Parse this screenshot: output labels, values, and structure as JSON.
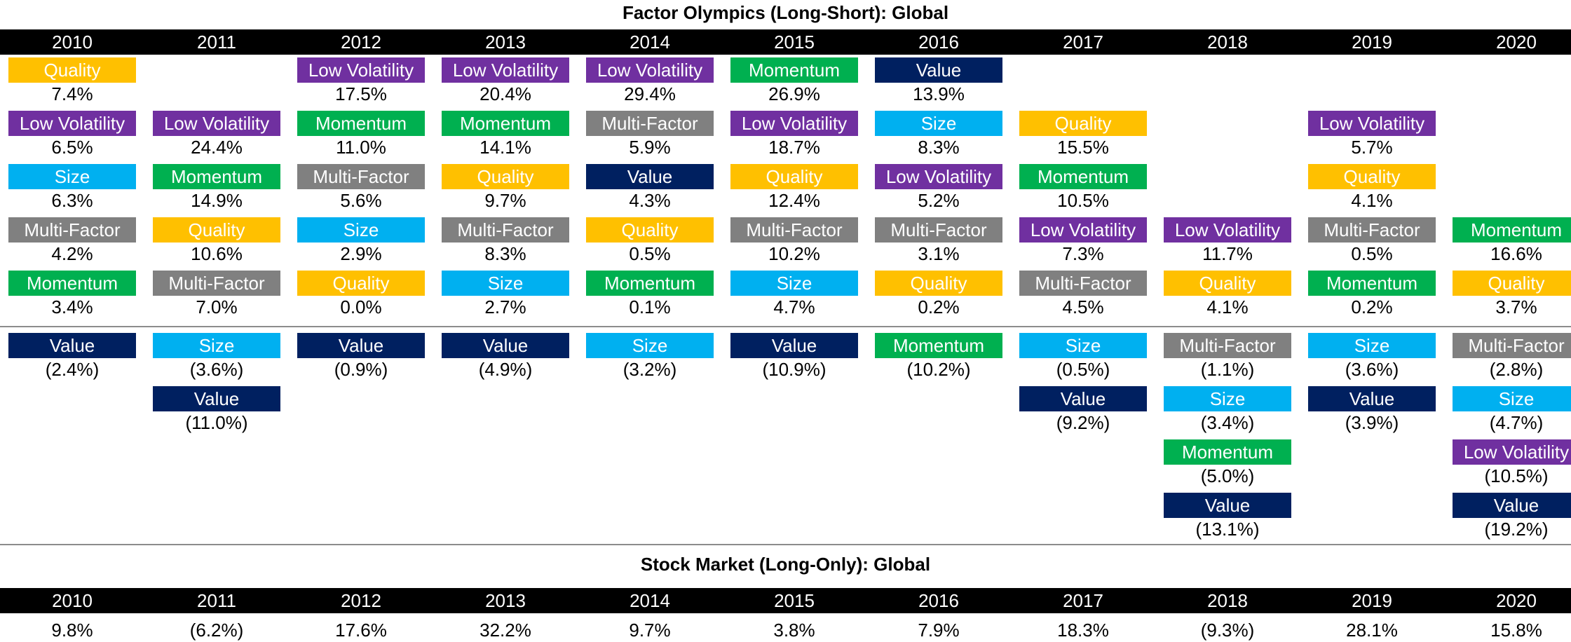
{
  "titles": {
    "factor": "Factor Olympics (Long-Short): Global",
    "market": "Stock Market (Long-Only): Global"
  },
  "colors": {
    "Quality": "#FFC000",
    "Low Volatility": "#7030A0",
    "Size": "#00B0F0",
    "Multi-Factor": "#808080",
    "Momentum": "#00B050",
    "Value": "#002060"
  },
  "chart_data": [
    {
      "type": "table",
      "title": "Factor Olympics (Long-Short): Global",
      "years": [
        "2010",
        "2011",
        "2012",
        "2013",
        "2014",
        "2015",
        "2016",
        "2017",
        "2018",
        "2019",
        "2020"
      ],
      "columns": [
        {
          "year": "2010",
          "positive": [
            [
              "Quality",
              "7.4%"
            ],
            [
              "Low Volatility",
              "6.5%"
            ],
            [
              "Size",
              "6.3%"
            ],
            [
              "Multi-Factor",
              "4.2%"
            ],
            [
              "Momentum",
              "3.4%"
            ]
          ],
          "negative": [
            [
              "Value",
              "(2.4%)"
            ]
          ]
        },
        {
          "year": "2011",
          "positive": [
            [
              "Low Volatility",
              "24.4%"
            ],
            [
              "Momentum",
              "14.9%"
            ],
            [
              "Quality",
              "10.6%"
            ],
            [
              "Multi-Factor",
              "7.0%"
            ]
          ],
          "negative": [
            [
              "Size",
              "(3.6%)"
            ],
            [
              "Value",
              "(11.0%)"
            ]
          ]
        },
        {
          "year": "2012",
          "positive": [
            [
              "Low Volatility",
              "17.5%"
            ],
            [
              "Momentum",
              "11.0%"
            ],
            [
              "Multi-Factor",
              "5.6%"
            ],
            [
              "Size",
              "2.9%"
            ],
            [
              "Quality",
              "0.0%"
            ]
          ],
          "negative": [
            [
              "Value",
              "(0.9%)"
            ]
          ]
        },
        {
          "year": "2013",
          "positive": [
            [
              "Low Volatility",
              "20.4%"
            ],
            [
              "Momentum",
              "14.1%"
            ],
            [
              "Quality",
              "9.7%"
            ],
            [
              "Multi-Factor",
              "8.3%"
            ],
            [
              "Size",
              "2.7%"
            ]
          ],
          "negative": [
            [
              "Value",
              "(4.9%)"
            ]
          ]
        },
        {
          "year": "2014",
          "positive": [
            [
              "Low Volatility",
              "29.4%"
            ],
            [
              "Multi-Factor",
              "5.9%"
            ],
            [
              "Value",
              "4.3%"
            ],
            [
              "Quality",
              "0.5%"
            ],
            [
              "Momentum",
              "0.1%"
            ]
          ],
          "negative": [
            [
              "Size",
              "(3.2%)"
            ]
          ]
        },
        {
          "year": "2015",
          "positive": [
            [
              "Momentum",
              "26.9%"
            ],
            [
              "Low Volatility",
              "18.7%"
            ],
            [
              "Quality",
              "12.4%"
            ],
            [
              "Multi-Factor",
              "10.2%"
            ],
            [
              "Size",
              "4.7%"
            ]
          ],
          "negative": [
            [
              "Value",
              "(10.9%)"
            ]
          ]
        },
        {
          "year": "2016",
          "positive": [
            [
              "Value",
              "13.9%"
            ],
            [
              "Size",
              "8.3%"
            ],
            [
              "Low Volatility",
              "5.2%"
            ],
            [
              "Multi-Factor",
              "3.1%"
            ],
            [
              "Quality",
              "0.2%"
            ]
          ],
          "negative": [
            [
              "Momentum",
              "(10.2%)"
            ]
          ]
        },
        {
          "year": "2017",
          "positive": [
            [
              "Quality",
              "15.5%"
            ],
            [
              "Momentum",
              "10.5%"
            ],
            [
              "Low Volatility",
              "7.3%"
            ],
            [
              "Multi-Factor",
              "4.5%"
            ]
          ],
          "negative": [
            [
              "Size",
              "(0.5%)"
            ],
            [
              "Value",
              "(9.2%)"
            ]
          ]
        },
        {
          "year": "2018",
          "positive": [
            [
              "Low Volatility",
              "11.7%"
            ],
            [
              "Quality",
              "4.1%"
            ]
          ],
          "negative": [
            [
              "Multi-Factor",
              "(1.1%)"
            ],
            [
              "Size",
              "(3.4%)"
            ],
            [
              "Momentum",
              "(5.0%)"
            ],
            [
              "Value",
              "(13.1%)"
            ]
          ]
        },
        {
          "year": "2019",
          "positive": [
            [
              "Low Volatility",
              "5.7%"
            ],
            [
              "Quality",
              "4.1%"
            ],
            [
              "Multi-Factor",
              "0.5%"
            ],
            [
              "Momentum",
              "0.2%"
            ]
          ],
          "negative": [
            [
              "Size",
              "(3.6%)"
            ],
            [
              "Value",
              "(3.9%)"
            ]
          ]
        },
        {
          "year": "2020",
          "positive": [
            [
              "Momentum",
              "16.6%"
            ],
            [
              "Quality",
              "3.7%"
            ]
          ],
          "negative": [
            [
              "Multi-Factor",
              "(2.8%)"
            ],
            [
              "Size",
              "(4.7%)"
            ],
            [
              "Low Volatility",
              "(10.5%)"
            ],
            [
              "Value",
              "(19.2%)"
            ]
          ]
        }
      ]
    },
    {
      "type": "table",
      "title": "Stock Market (Long-Only): Global",
      "years": [
        "2010",
        "2011",
        "2012",
        "2013",
        "2014",
        "2015",
        "2016",
        "2017",
        "2018",
        "2019",
        "2020"
      ],
      "values": [
        "9.8%",
        "(6.2%)",
        "17.6%",
        "32.2%",
        "9.7%",
        "3.8%",
        "7.9%",
        "18.3%",
        "(9.3%)",
        "28.1%",
        "15.8%"
      ]
    }
  ]
}
